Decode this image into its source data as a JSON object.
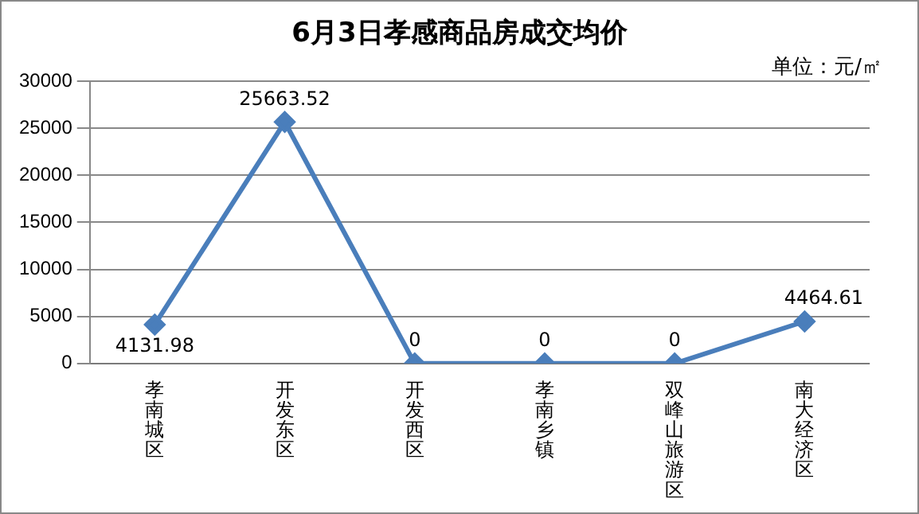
{
  "chart_data": {
    "type": "line",
    "title": "6月3日孝感商品房成交均价",
    "annotations": [
      "单位：元/㎡"
    ],
    "categories": [
      "孝南城区",
      "开发东区",
      "开发西区",
      "孝南乡镇",
      "双峰山旅游区",
      "南大经济区"
    ],
    "series": [
      {
        "color": "#4a7ebb",
        "values": [
          4131.98,
          25663.52,
          0,
          0,
          0,
          4464.61
        ]
      }
    ],
    "ylim": [
      0,
      30000
    ],
    "yticks": [
      0,
      5000,
      10000,
      15000,
      20000,
      25000,
      30000
    ],
    "grid": "y",
    "legend": false,
    "marker": "diamond",
    "line_style": "solid",
    "data_labels": true
  }
}
